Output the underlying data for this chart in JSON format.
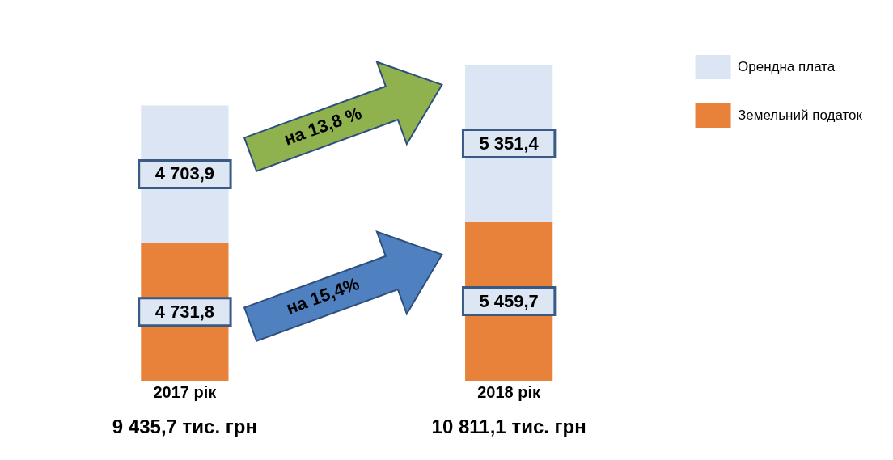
{
  "chart_data": {
    "type": "bar",
    "stacked": true,
    "categories": [
      "2017 рік",
      "2018 рік"
    ],
    "series": [
      {
        "name": "Земельний податок",
        "color": "#e8823a",
        "values": [
          4731.8,
          5459.7
        ],
        "value_labels": [
          "4 731,8",
          "5 459,7"
        ]
      },
      {
        "name": "Орендна плата",
        "color": "#dbe5f4",
        "values": [
          4703.9,
          5351.4
        ],
        "value_labels": [
          "4 703,9",
          "5 351,4"
        ]
      }
    ],
    "totals": [
      "9 435,7 тис. грн",
      "10 811,1 тис. грн"
    ],
    "annotations": [
      "на 13,8 %",
      "на 15,4%"
    ],
    "tick_labels": "x",
    "grid": false,
    "legend": "top right"
  }
}
